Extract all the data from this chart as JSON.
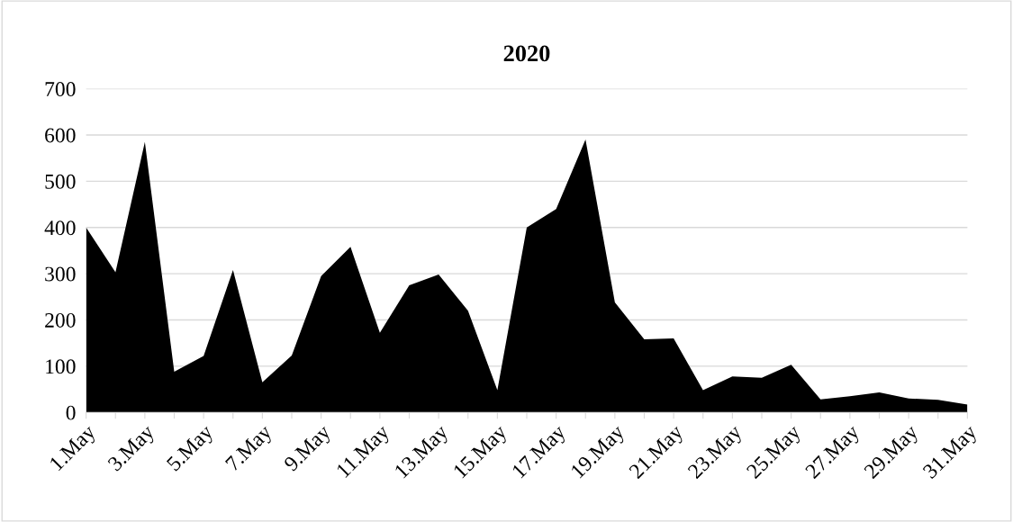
{
  "chart_data": {
    "type": "area",
    "title": "2020",
    "categories": [
      "1.May",
      null,
      "3.May",
      null,
      "5.May",
      null,
      "7.May",
      null,
      "9.May",
      null,
      "11.May",
      null,
      "13.May",
      null,
      "15.May",
      null,
      "17.May",
      null,
      "19.May",
      null,
      "21.May",
      null,
      "23.May",
      null,
      "25.May",
      null,
      "27.May",
      null,
      "29.May",
      null,
      "31.May"
    ],
    "values": [
      400,
      303,
      585,
      88,
      122,
      308,
      65,
      123,
      295,
      358,
      172,
      275,
      298,
      220,
      48,
      400,
      440,
      590,
      238,
      158,
      160,
      48,
      78,
      75,
      103,
      28,
      35,
      43,
      30,
      27,
      17
    ],
    "color": "#000000",
    "ylim": [
      0,
      700
    ],
    "yticks": [
      0,
      100,
      200,
      300,
      400,
      500,
      600,
      700
    ],
    "grid": "y",
    "legend": false
  }
}
